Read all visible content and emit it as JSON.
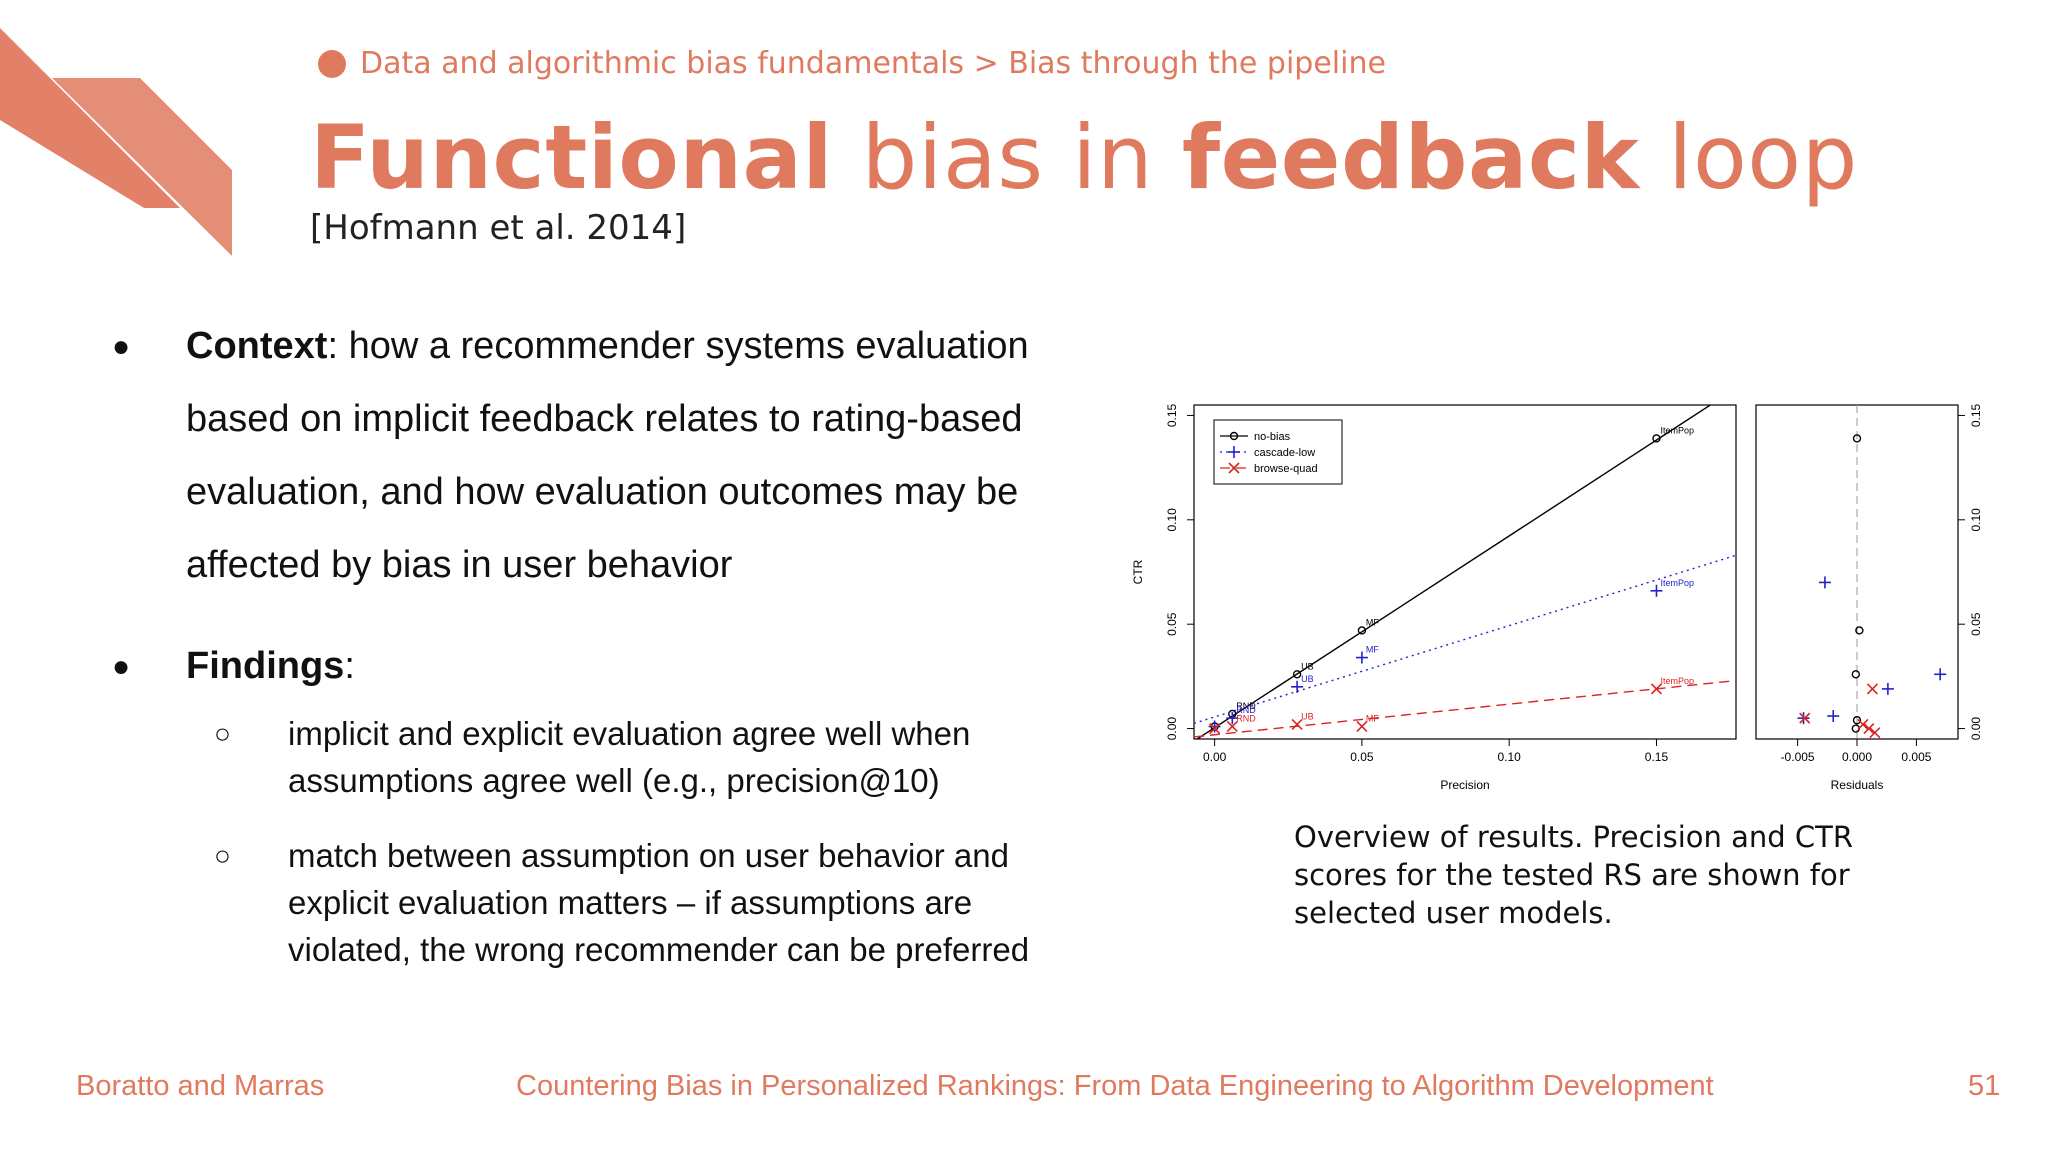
{
  "colors": {
    "accent": "#e07a5f",
    "no_bias": "#000000",
    "cascade_low": "#2222cc",
    "browse_quad": "#dd2222"
  },
  "header": {
    "breadcrumb": "Data and algorithmic bias fundamentals > Bias through the pipeline",
    "title_part1": "Functional",
    "title_part2": " bias in ",
    "title_part3": "feedback",
    "title_part4": " loop",
    "citation": "[Hofmann et al. 2014]"
  },
  "bullets": {
    "context_label": "Context",
    "context_text": ": how a recommender systems evaluation based on implicit feedback relates to rating-based evaluation, and how evaluation outcomes may be affected by bias in user behavior",
    "findings_label": "Findings",
    "findings_suffix": ":",
    "bullet_symbol": "●",
    "sub_symbol": "○",
    "sub_items": [
      "implicit and explicit evaluation agree well when assumptions agree well (e.g., precision@10)",
      "match between assumption on user behavior and explicit evaluation matters – if assumptions are violated, the wrong recommender can be preferred"
    ]
  },
  "figure": {
    "caption": "Overview of results. Precision and CTR scores for the tested RS are shown for selected user models.",
    "chart_data": [
      {
        "type": "scatter",
        "xlabel": "Precision",
        "ylabel": "CTR",
        "xlim": [
          -0.007,
          0.177
        ],
        "ylim": [
          -0.005,
          0.155
        ],
        "xticks": [
          "0.00",
          "0.05",
          "0.10",
          "0.15"
        ],
        "yticks": [
          "0.00",
          "0.05",
          "0.10",
          "0.15"
        ],
        "legend_position": "top-left",
        "series": [
          {
            "name": "no-bias",
            "marker": "circle",
            "line": "solid",
            "points": [
              {
                "x": 0.0,
                "y": 0.001,
                "label": ""
              },
              {
                "x": 0.006,
                "y": 0.007,
                "label": "RND"
              },
              {
                "x": 0.028,
                "y": 0.026,
                "label": "UB"
              },
              {
                "x": 0.05,
                "y": 0.047,
                "label": "MF"
              },
              {
                "x": 0.15,
                "y": 0.139,
                "label": "ItemPop"
              }
            ],
            "fit": [
              [
                -0.007,
                -0.006
              ],
              [
                0.177,
                0.163
              ]
            ]
          },
          {
            "name": "cascade-low",
            "marker": "plus",
            "line": "dotted",
            "points": [
              {
                "x": 0.0,
                "y": 0.001,
                "label": ""
              },
              {
                "x": 0.006,
                "y": 0.005,
                "label": "RND"
              },
              {
                "x": 0.028,
                "y": 0.02,
                "label": "UB"
              },
              {
                "x": 0.05,
                "y": 0.034,
                "label": "MF"
              },
              {
                "x": 0.15,
                "y": 0.066,
                "label": "ItemPop"
              }
            ],
            "fit": [
              [
                -0.007,
                0.0025
              ],
              [
                0.177,
                0.083
              ]
            ]
          },
          {
            "name": "browse-quad",
            "marker": "x",
            "line": "dashed",
            "points": [
              {
                "x": 0.0,
                "y": 0.0,
                "label": ""
              },
              {
                "x": 0.006,
                "y": 0.001,
                "label": "RND"
              },
              {
                "x": 0.028,
                "y": 0.002,
                "label": "UB"
              },
              {
                "x": 0.05,
                "y": 0.001,
                "label": "MF"
              },
              {
                "x": 0.15,
                "y": 0.019,
                "label": "ItemPop"
              }
            ],
            "fit": [
              [
                -0.007,
                -0.004
              ],
              [
                0.177,
                0.023
              ]
            ]
          }
        ]
      },
      {
        "type": "scatter",
        "xlabel": "Residuals",
        "ylabel": "",
        "xlim": [
          -0.0085,
          0.0085
        ],
        "ylim": [
          -0.005,
          0.155
        ],
        "xticks": [
          "-0.005",
          "0.000",
          "0.005"
        ],
        "yticks": [
          "0.00",
          "0.05",
          "0.10",
          "0.15"
        ],
        "series": [
          {
            "name": "no-bias",
            "marker": "circle",
            "points": [
              {
                "x": 0.0,
                "y": 0.139
              },
              {
                "x": 0.0002,
                "y": 0.047
              },
              {
                "x": -0.0001,
                "y": 0.026
              },
              {
                "x": 0.0,
                "y": 0.004
              },
              {
                "x": -0.0001,
                "y": 0.0
              }
            ]
          },
          {
            "name": "cascade-low",
            "marker": "plus",
            "points": [
              {
                "x": -0.0027,
                "y": 0.07
              },
              {
                "x": -0.0045,
                "y": 0.005
              },
              {
                "x": -0.002,
                "y": 0.006
              },
              {
                "x": 0.0026,
                "y": 0.019
              },
              {
                "x": 0.007,
                "y": 0.026
              }
            ]
          },
          {
            "name": "browse-quad",
            "marker": "x",
            "points": [
              {
                "x": -0.0044,
                "y": 0.005
              },
              {
                "x": 0.0013,
                "y": 0.019
              },
              {
                "x": 0.0005,
                "y": 0.002
              },
              {
                "x": 0.001,
                "y": 0.0
              },
              {
                "x": 0.0015,
                "y": -0.002
              }
            ]
          }
        ]
      }
    ]
  },
  "footer": {
    "authors": "Boratto and Marras",
    "tutorial_title": "Countering Bias in Personalized Rankings: From Data Engineering to Algorithm Development",
    "page_number": "51"
  }
}
